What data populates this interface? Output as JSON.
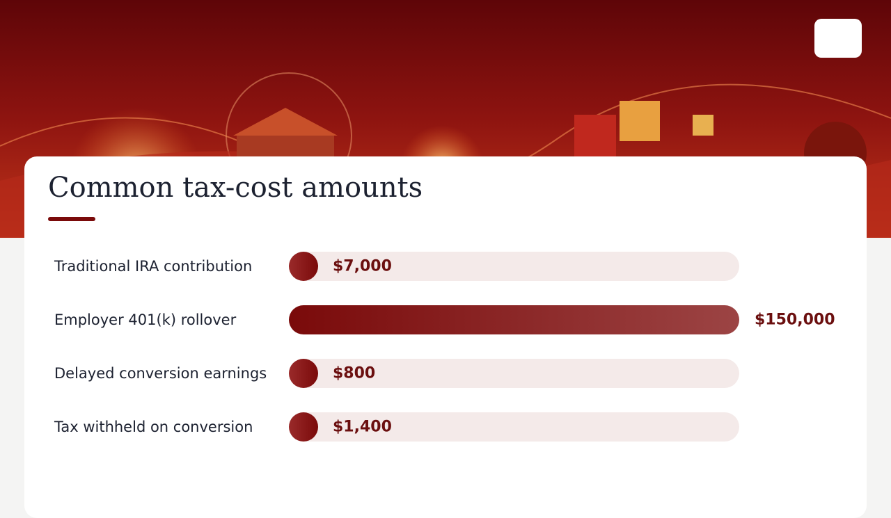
{
  "chart_data": {
    "type": "bar",
    "orientation": "horizontal",
    "title": "Common tax-cost amounts",
    "categories": [
      "Traditional IRA contribution",
      "Employer 401(k) rollover",
      "Delayed conversion earnings",
      "Tax withheld on conversion"
    ],
    "values": [
      7000,
      150000,
      800,
      1400
    ],
    "value_labels": [
      "$7,000",
      "$150,000",
      "$800",
      "$1,400"
    ],
    "xlim": [
      0,
      150000
    ],
    "color": "#7a0a0a"
  }
}
